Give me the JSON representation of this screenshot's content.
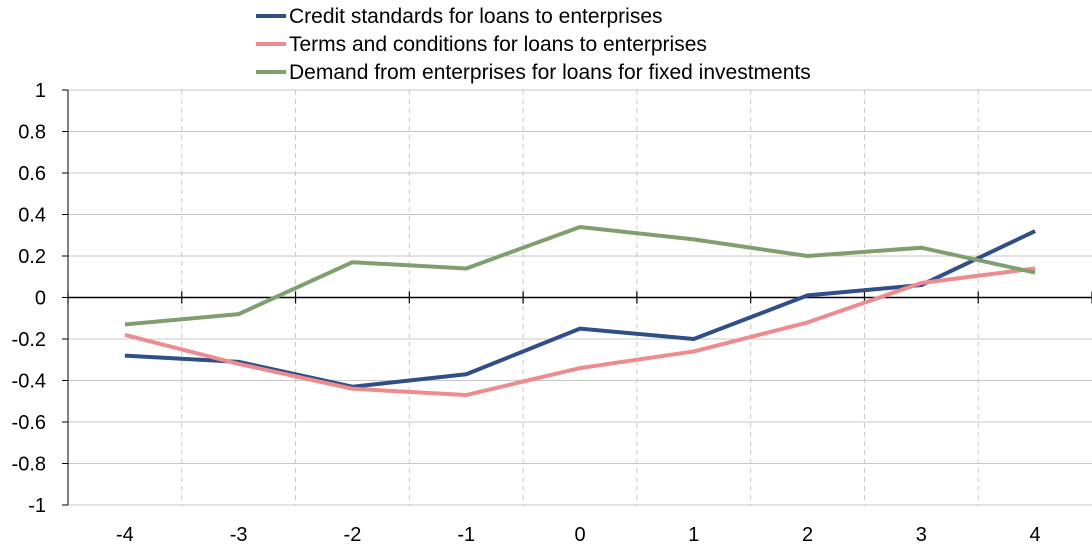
{
  "chart_data": {
    "type": "line",
    "title": "",
    "xlabel": "",
    "ylabel": "",
    "x": [
      -4,
      -3,
      -2,
      -1,
      0,
      1,
      2,
      3,
      4
    ],
    "xlim": [
      -4.5,
      4.5
    ],
    "ylim": [
      -1,
      1
    ],
    "x_ticks": [
      "-4",
      "-3",
      "-2",
      "-1",
      "0",
      "1",
      "2",
      "3",
      "4"
    ],
    "y_ticks": [
      "1",
      "0.8",
      "0.6",
      "0.4",
      "0.2",
      "0",
      "-0.2",
      "-0.4",
      "-0.6",
      "-0.8",
      "-1"
    ],
    "grid": true,
    "legend_position": "top",
    "series": [
      {
        "name": "Credit standards for loans to enterprises",
        "color": "#2f4f86",
        "values": [
          -0.28,
          -0.31,
          -0.43,
          -0.37,
          -0.15,
          -0.2,
          0.01,
          0.06,
          0.32
        ]
      },
      {
        "name": "Terms and conditions for loans to enterprises",
        "color": "#ee8b8f",
        "values": [
          -0.18,
          -0.32,
          -0.44,
          -0.47,
          -0.34,
          -0.26,
          -0.12,
          0.07,
          0.14
        ]
      },
      {
        "name": "Demand from enterprises for loans for fixed investments",
        "color": "#7f9f6f",
        "values": [
          -0.13,
          -0.08,
          0.17,
          0.14,
          0.34,
          0.28,
          0.2,
          0.24,
          0.12
        ]
      }
    ]
  }
}
